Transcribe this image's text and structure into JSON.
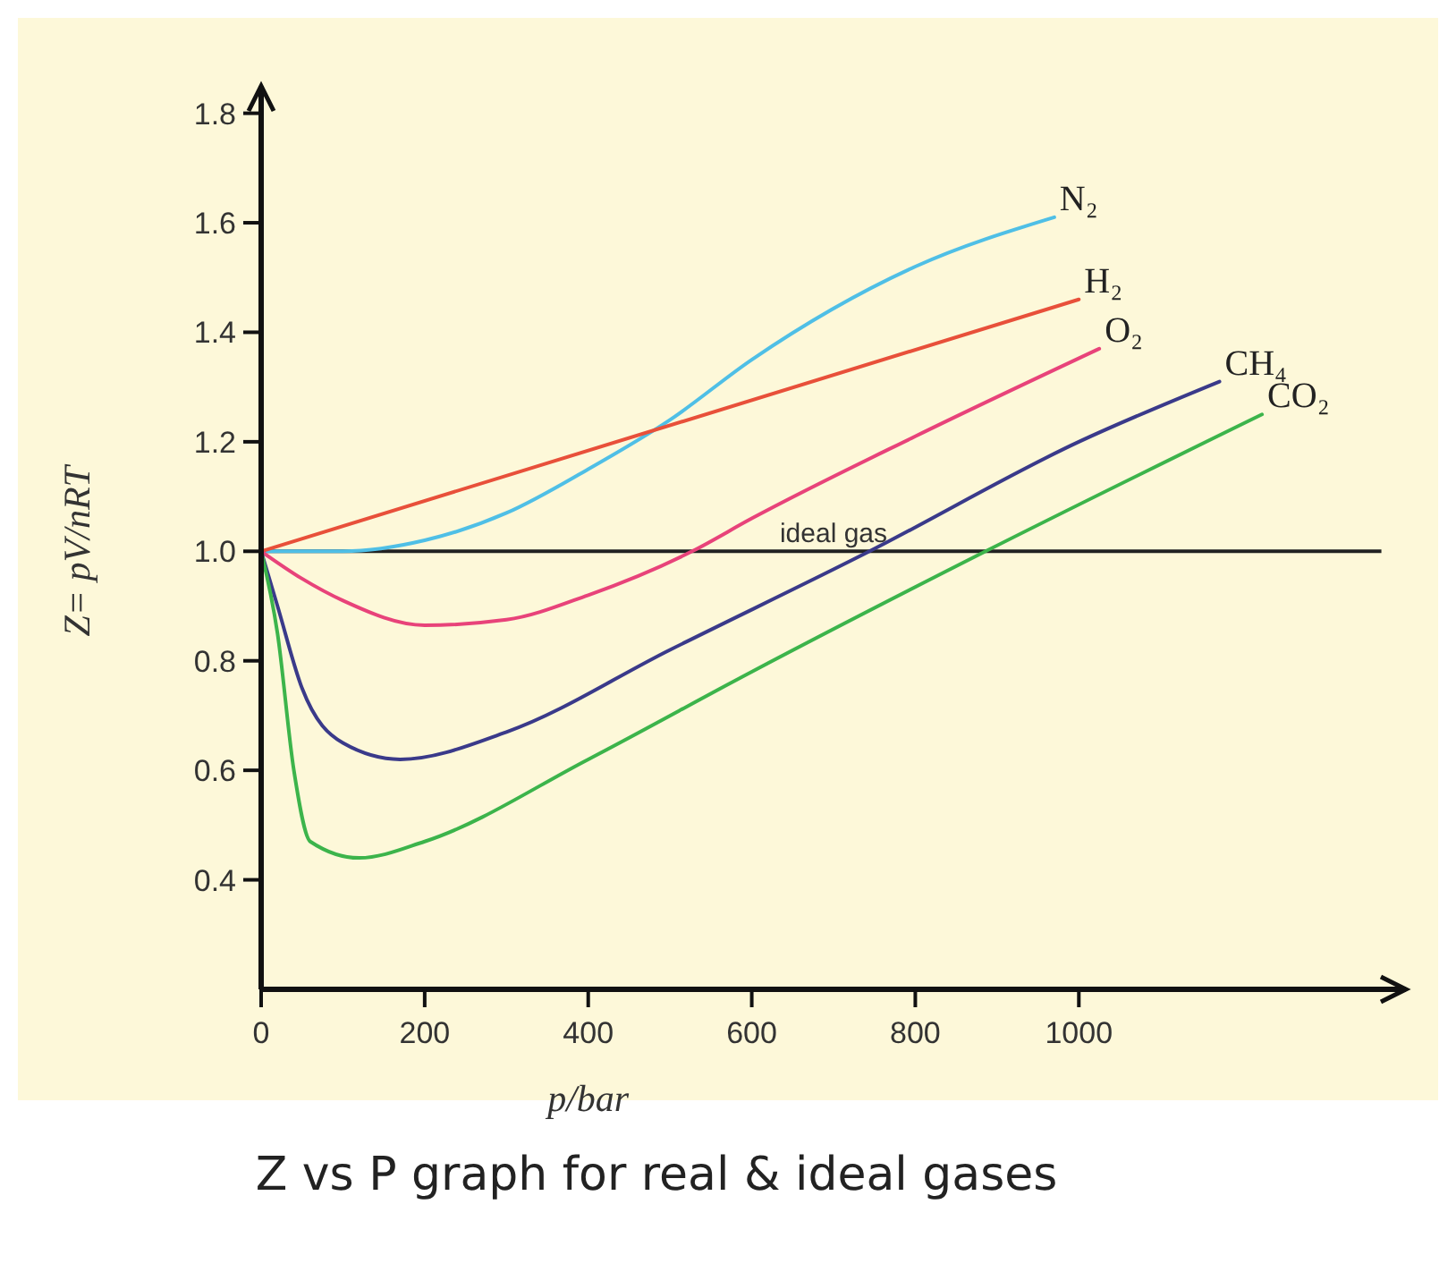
{
  "chart_data": {
    "type": "line",
    "title": "Z vs P graph for real & ideal gases",
    "xlabel": "p/bar",
    "ylabel": "Z= pV/nRT",
    "xlim": [
      0,
      1400
    ],
    "ylim": [
      0.2,
      1.85
    ],
    "xticks": [
      0,
      200,
      400,
      600,
      800,
      1000
    ],
    "yticks": [
      0.4,
      0.6,
      0.8,
      {
        "value": 1,
        "label": "1.0"
      },
      1.2,
      1.4,
      1.6,
      1.8
    ],
    "grid": false,
    "marker": "none",
    "line_style": "solid",
    "ref_lines": [
      {
        "axis": "y",
        "value": 1,
        "label": "ideal gas",
        "color": "#222222"
      }
    ],
    "series": [
      {
        "name": "N₂",
        "color": "#4fbfe6",
        "x": [
          0,
          100,
          200,
          300,
          400,
          500,
          600,
          800,
          970
        ],
        "values": [
          1.0,
          1.0,
          1.02,
          1.07,
          1.15,
          1.24,
          1.35,
          1.52,
          1.61
        ]
      },
      {
        "name": "H₂",
        "color": "#e8503a",
        "x": [
          0,
          1000
        ],
        "values": [
          1.0,
          1.46
        ]
      },
      {
        "name": "O₂",
        "color": "#e8437a",
        "x": [
          0,
          50,
          100,
          200,
          300,
          400,
          527,
          600,
          800,
          1025
        ],
        "values": [
          1.0,
          0.95,
          0.91,
          0.865,
          0.875,
          0.92,
          1.0,
          1.06,
          1.21,
          1.37
        ]
      },
      {
        "name": "CH₄",
        "color": "#3a3a8a",
        "x": [
          0,
          20,
          50,
          100,
          170,
          300,
          500,
          744,
          1000,
          1172
        ],
        "values": [
          1.0,
          0.9,
          0.75,
          0.65,
          0.62,
          0.67,
          0.82,
          1.0,
          1.2,
          1.31
        ]
      },
      {
        "name": "CO₂",
        "color": "#3cb44b",
        "x": [
          0,
          20,
          40,
          60,
          120,
          200,
          400,
          600,
          886,
          1224
        ],
        "values": [
          1.0,
          0.85,
          0.6,
          0.47,
          0.44,
          0.47,
          0.62,
          0.78,
          1.0,
          1.25
        ]
      }
    ]
  }
}
